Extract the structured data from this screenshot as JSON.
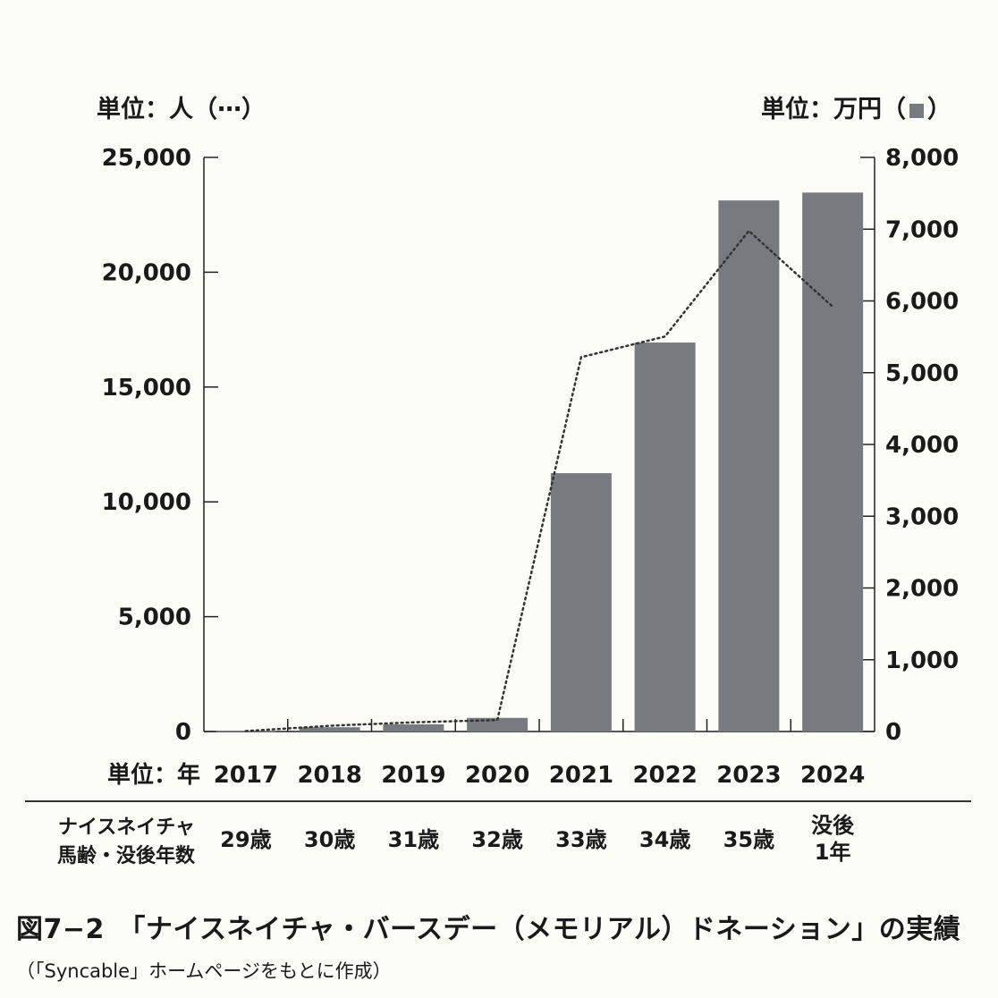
{
  "unit_left": "単位：人（⋯）",
  "unit_right": "単位：万円（",
  "unit_right_close": "）",
  "x_unit_label": "単位：年",
  "age_row_header_line1": "ナイスネイチャ",
  "age_row_header_line2": "馬齢・没後年数",
  "ages": [
    "29歳",
    "30歳",
    "31歳",
    "32歳",
    "33歳",
    "34歳",
    "35歳",
    "没後\n1年"
  ],
  "caption": "図7−2　「ナイスネイチャ・バースデー（メモリアル）ドネーション」の実績",
  "source": "（「Syncable」ホームページをもとに作成）",
  "chart_data": {
    "type": "bar+line",
    "categories": [
      "2017",
      "2018",
      "2019",
      "2020",
      "2021",
      "2022",
      "2023",
      "2024"
    ],
    "left_axis": {
      "ticks": [
        "0",
        "5,000",
        "10,000",
        "15,000",
        "20,000",
        "25,000"
      ],
      "ylim": [
        0,
        25000
      ],
      "label": "単位：人（⋯）"
    },
    "right_axis": {
      "ticks": [
        "0",
        "1,000",
        "2,000",
        "3,000",
        "4,000",
        "5,000",
        "6,000",
        "7,000",
        "8,000"
      ],
      "ylim": [
        0,
        8000
      ],
      "label": "単位：万円（■）"
    },
    "series": [
      {
        "type": "bar",
        "axis": "right",
        "values": [
          10,
          60,
          100,
          190,
          3600,
          5420,
          7400,
          7510
        ],
        "color": "#777b80"
      },
      {
        "type": "line",
        "axis": "left",
        "style": "dotted",
        "values": [
          20,
          250,
          400,
          500,
          16300,
          17200,
          21800,
          18500
        ],
        "color": "#333333"
      }
    ]
  }
}
